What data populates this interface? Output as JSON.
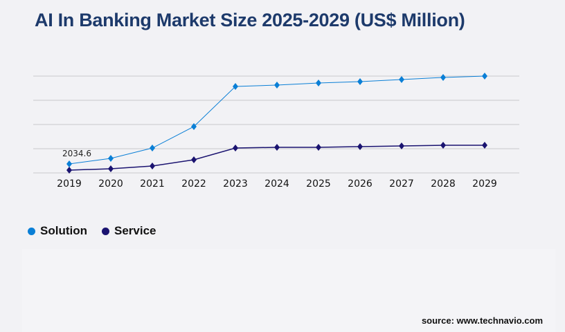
{
  "title": "AI In Banking Market Size 2025-2029 (US$ Million)",
  "source": "source: www.technavio.com",
  "chart_data": {
    "type": "line",
    "title": "AI In Banking Market Size 2025-2029 (US$ Million)",
    "categories": [
      "2019",
      "2020",
      "2021",
      "2022",
      "2023",
      "2024",
      "2025",
      "2026",
      "2027",
      "2028",
      "2029"
    ],
    "ylim": [
      0,
      21910
    ],
    "grid": true,
    "legend_position": "bottom-left",
    "series": [
      {
        "name": "Solution",
        "color": "#0a7fd6",
        "values": [
          2034.6,
          3290,
          5630,
          10490,
          19560,
          19880,
          20350,
          20660,
          21130,
          21600,
          21910
        ]
      },
      {
        "name": "Service",
        "color": "#1a1370",
        "values": [
          630,
          940,
          1570,
          2970,
          5630,
          5790,
          5790,
          5950,
          6100,
          6260,
          6260
        ]
      }
    ],
    "annotations": [
      {
        "series": "Solution",
        "category": "2019",
        "text": "2034.6"
      }
    ]
  }
}
